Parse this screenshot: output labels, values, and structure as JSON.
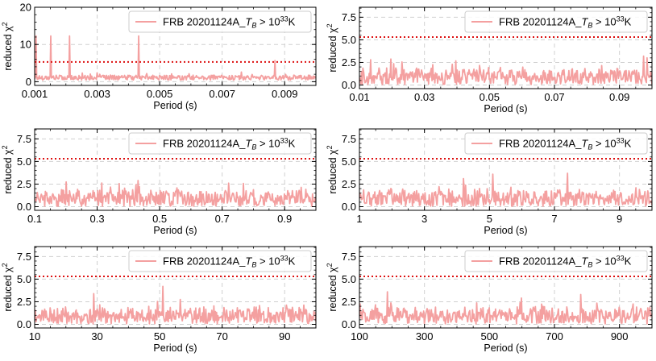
{
  "chart_data": [
    {
      "type": "line",
      "xlabel": "Period (s)",
      "ylabel": "reduced χ",
      "ylabel_sup": "2",
      "xlim": [
        0.001,
        0.01
      ],
      "ylim": [
        -1,
        20
      ],
      "xticks": [
        0.001,
        0.003,
        0.005,
        0.007,
        0.009
      ],
      "xtick_labels": [
        "0.001",
        "0.003",
        "0.005",
        "0.007",
        "0.009"
      ],
      "yticks": [
        0,
        10,
        20
      ],
      "ytick_labels": [
        "0",
        "10",
        "20"
      ],
      "threshold": 5.3,
      "grid": true,
      "legend_location": "upper-right",
      "series": [
        {
          "name": "FRB 20201124A_T_B > 10^33 K",
          "color": "#f4a0a0"
        }
      ],
      "spikes": [
        [
          0.00105,
          12.3
        ],
        [
          0.00152,
          12.3
        ],
        [
          0.00212,
          12.3
        ],
        [
          0.00432,
          12.3
        ],
        [
          0.00868,
          5.7
        ]
      ]
    },
    {
      "type": "line",
      "xlabel": "Period (s)",
      "ylabel": "reduced χ",
      "ylabel_sup": "2",
      "xlim": [
        0.01,
        0.1
      ],
      "ylim": [
        -0.4,
        8.6
      ],
      "xticks": [
        0.01,
        0.03,
        0.05,
        0.07,
        0.09
      ],
      "xtick_labels": [
        "0.01",
        "0.03",
        "0.05",
        "0.07",
        "0.09"
      ],
      "yticks": [
        0,
        2.5,
        5.0,
        7.5
      ],
      "ytick_labels": [
        "0.0",
        "2.5",
        "5.0",
        "7.5"
      ],
      "threshold": 5.3,
      "grid": true,
      "legend_location": "upper-right",
      "series": [
        {
          "name": "FRB 20201124A_T_B > 10^33 K",
          "color": "#f4a0a0"
        }
      ],
      "spikes": [
        [
          0.0135,
          2.8
        ],
        [
          0.0975,
          3.2
        ],
        [
          0.0985,
          3.0
        ]
      ]
    },
    {
      "type": "line",
      "xlabel": "Period (s)",
      "ylabel": "reduced χ",
      "ylabel_sup": "2",
      "xlim": [
        0.1,
        1.0
      ],
      "ylim": [
        -0.4,
        8.6
      ],
      "xticks": [
        0.1,
        0.3,
        0.5,
        0.7,
        0.9
      ],
      "xtick_labels": [
        "0.1",
        "0.3",
        "0.5",
        "0.7",
        "0.9"
      ],
      "yticks": [
        0,
        2.5,
        5.0,
        7.5
      ],
      "ytick_labels": [
        "0.0",
        "2.5",
        "5.0",
        "7.5"
      ],
      "threshold": 5.3,
      "grid": true,
      "legend_location": "upper-right",
      "series": [
        {
          "name": "FRB 20201124A_T_B > 10^33 K",
          "color": "#f4a0a0"
        }
      ],
      "spikes": [
        [
          0.43,
          2.9
        ],
        [
          0.72,
          2.6
        ]
      ]
    },
    {
      "type": "line",
      "xlabel": "Period (s)",
      "ylabel": "reduced χ",
      "ylabel_sup": "2",
      "xlim": [
        1,
        10
      ],
      "ylim": [
        -0.4,
        8.6
      ],
      "xticks": [
        1,
        3,
        5,
        7,
        9
      ],
      "xtick_labels": [
        "1",
        "3",
        "5",
        "7",
        "9"
      ],
      "yticks": [
        0,
        2.5,
        5.0,
        7.5
      ],
      "ytick_labels": [
        "0.0",
        "2.5",
        "5.0",
        "7.5"
      ],
      "threshold": 5.3,
      "grid": true,
      "legend_location": "upper-right",
      "series": [
        {
          "name": "FRB 20201124A_T_B > 10^33 K",
          "color": "#f4a0a0"
        }
      ],
      "spikes": [
        [
          4.2,
          3.1
        ],
        [
          5.1,
          3.6
        ],
        [
          7.4,
          3.7
        ]
      ]
    },
    {
      "type": "line",
      "xlabel": "Period (s)",
      "ylabel": "reduced χ",
      "ylabel_sup": "2",
      "xlim": [
        10,
        100
      ],
      "ylim": [
        -0.4,
        8.6
      ],
      "xticks": [
        10,
        30,
        50,
        70,
        90
      ],
      "xtick_labels": [
        "10",
        "30",
        "50",
        "70",
        "90"
      ],
      "yticks": [
        0,
        2.5,
        5.0,
        7.5
      ],
      "ytick_labels": [
        "0.0",
        "2.5",
        "5.0",
        "7.5"
      ],
      "threshold": 5.3,
      "grid": true,
      "legend_location": "upper-right",
      "series": [
        {
          "name": "FRB 20201124A_T_B > 10^33 K",
          "color": "#f4a0a0"
        }
      ],
      "spikes": [
        [
          29,
          3.4
        ],
        [
          51,
          4.2
        ]
      ]
    },
    {
      "type": "line",
      "xlabel": "Period (s)",
      "ylabel": "reduced χ",
      "ylabel_sup": "2",
      "xlim": [
        100,
        1000
      ],
      "ylim": [
        -0.4,
        8.6
      ],
      "xticks": [
        100,
        300,
        500,
        700,
        900
      ],
      "xtick_labels": [
        "100",
        "300",
        "500",
        "700",
        "900"
      ],
      "yticks": [
        0,
        2.5,
        5.0,
        7.5
      ],
      "ytick_labels": [
        "0.0",
        "2.5",
        "5.0",
        "7.5"
      ],
      "threshold": 5.3,
      "grid": true,
      "legend_location": "upper-right",
      "series": [
        {
          "name": "FRB 20201124A_T_B > 10^33 K",
          "color": "#f4a0a0"
        }
      ],
      "spikes": [
        [
          185,
          3.6
        ],
        [
          780,
          3.3
        ]
      ]
    }
  ],
  "legend": {
    "prefix": "FRB 20201124A_",
    "t": "T",
    "b": "B",
    "gt": " > 10",
    "exp": "33",
    "unit": "K"
  },
  "colors": {
    "series": "#f4a0a0",
    "threshold": "#dd1111",
    "grid": "#d0d0d0"
  }
}
